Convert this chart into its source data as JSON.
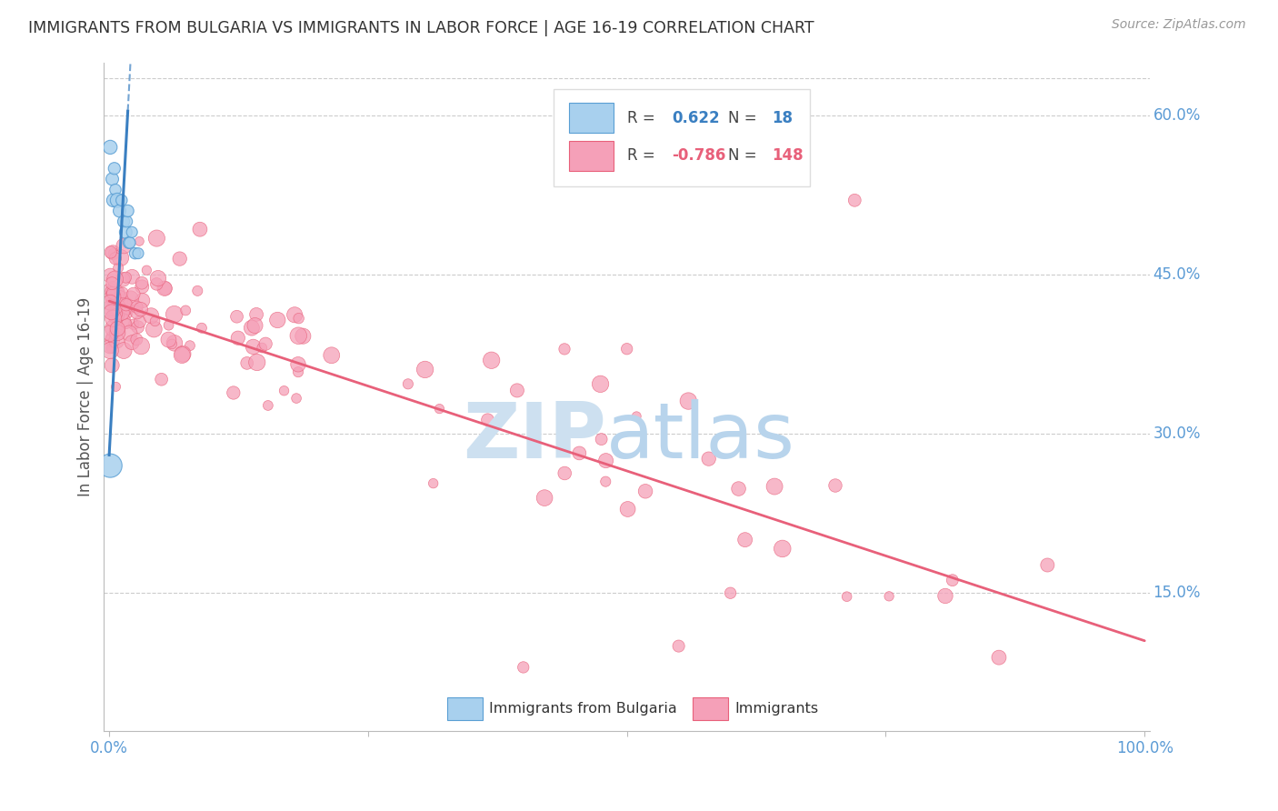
{
  "title": "IMMIGRANTS FROM BULGARIA VS IMMIGRANTS IN LABOR FORCE | AGE 16-19 CORRELATION CHART",
  "source": "Source: ZipAtlas.com",
  "ylabel": "In Labor Force | Age 16-19",
  "yticks": [
    15.0,
    30.0,
    45.0,
    60.0
  ],
  "blue_R": 0.622,
  "blue_N": 18,
  "pink_R": -0.786,
  "pink_N": 148,
  "blue_color": "#a8d0ee",
  "pink_color": "#f5a0b8",
  "blue_edge_color": "#5a9fd4",
  "pink_edge_color": "#e8607a",
  "blue_line_color": "#3a7fc1",
  "pink_line_color": "#e8607a",
  "title_color": "#333333",
  "axis_label_color": "#555555",
  "tick_label_color": "#5b9bd5",
  "grid_color": "#cccccc",
  "watermark_zip_color": "#cde0f0",
  "watermark_atlas_color": "#b8d4ec",
  "legend_text_color": "#333333",
  "legend_blue_value_color": "#3a7fc1",
  "legend_pink_value_color": "#e8607a",
  "blue_line_intercept": 0.28,
  "blue_line_slope": 18.0,
  "pink_line_intercept": 0.425,
  "pink_line_slope": -0.32
}
